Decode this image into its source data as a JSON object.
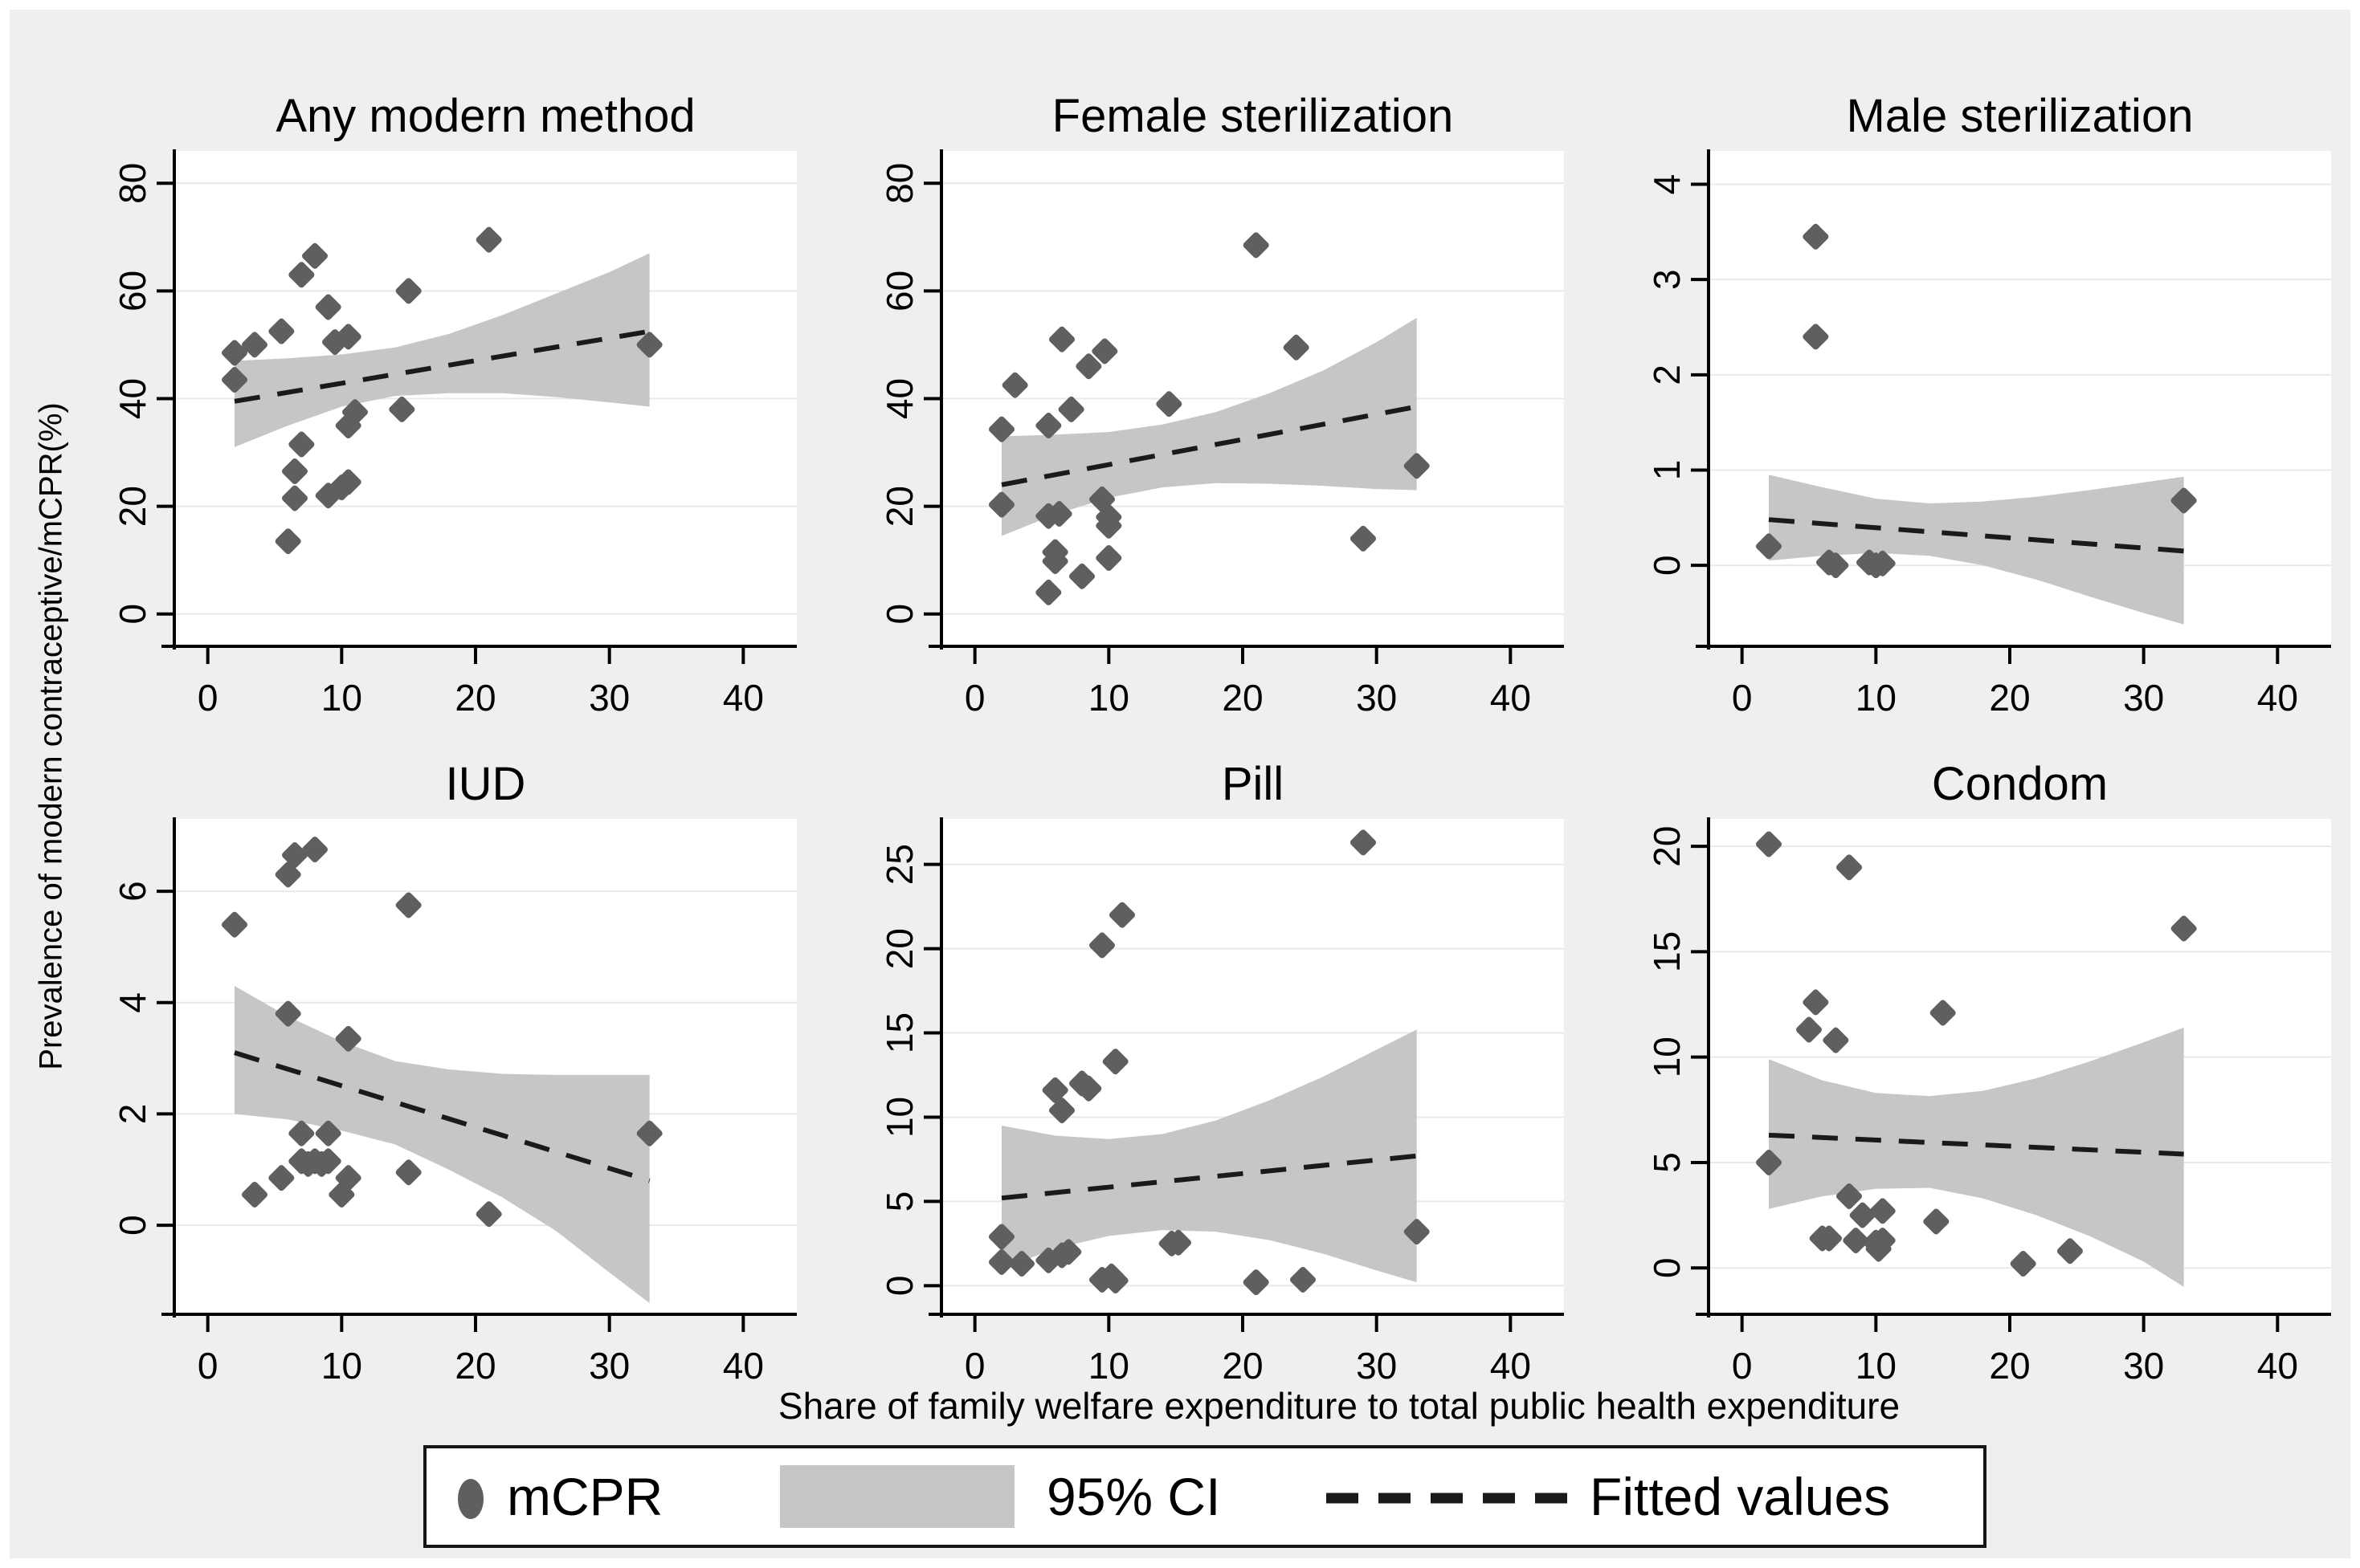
{
  "figure": {
    "ylabel": "Prevalence of modern contraceptive/mCPR(%)",
    "xlabel": "Share of family welfare expenditure to total public health expenditure",
    "colors": {
      "marker": "#5f5f5f",
      "ci": "#c6c6c6",
      "fit": "#1a1a1a",
      "background": "#efefef",
      "plot_bg": "#ffffff",
      "grid": "#e9e9e9",
      "axis": "#000000"
    }
  },
  "legend": {
    "items": [
      {
        "label": "mCPR",
        "type": "marker"
      },
      {
        "label": "95% CI",
        "type": "area"
      },
      {
        "label": "Fitted values",
        "type": "line"
      }
    ]
  },
  "chart_data": [
    {
      "type": "scatter",
      "title": "Any modern method",
      "xlim": [
        -2.5,
        44
      ],
      "xticks": [
        0,
        10,
        20,
        30,
        40
      ],
      "ylim": [
        -6,
        86
      ],
      "yticks": [
        0,
        20,
        40,
        60,
        80
      ],
      "points": [
        [
          2,
          48.5
        ],
        [
          2,
          43.5
        ],
        [
          3.5,
          50
        ],
        [
          5.5,
          52.5
        ],
        [
          6,
          13.5
        ],
        [
          6.5,
          21.5
        ],
        [
          6.5,
          26.5
        ],
        [
          7,
          31.5
        ],
        [
          7,
          63
        ],
        [
          8,
          66.5
        ],
        [
          9,
          57
        ],
        [
          9,
          22
        ],
        [
          9.5,
          50.5
        ],
        [
          10,
          23.5
        ],
        [
          10.5,
          24.5
        ],
        [
          10.5,
          35
        ],
        [
          10.5,
          51.5
        ],
        [
          11,
          37.5
        ],
        [
          14.5,
          38
        ],
        [
          15,
          60
        ],
        [
          21,
          69.5
        ],
        [
          33,
          50
        ]
      ],
      "fit_line": {
        "x0": 2,
        "y0": 39.5,
        "x1": 33,
        "y1": 52.5
      },
      "ci_band": {
        "x": [
          2,
          6,
          10,
          14,
          18,
          22,
          26,
          30,
          33
        ],
        "upper": [
          47,
          47.5,
          48.2,
          49.5,
          52,
          55.5,
          59.5,
          63.5,
          67
        ],
        "lower": [
          31,
          35,
          38.5,
          40.5,
          41,
          41,
          40.3,
          39.3,
          38.5
        ]
      }
    },
    {
      "type": "scatter",
      "title": "Female sterilization",
      "xlim": [
        -2.5,
        44
      ],
      "xticks": [
        0,
        10,
        20,
        30,
        40
      ],
      "ylim": [
        -6,
        86
      ],
      "yticks": [
        0,
        20,
        40,
        60,
        80
      ],
      "points": [
        [
          2,
          20.3
        ],
        [
          2,
          34.3
        ],
        [
          3,
          42.5
        ],
        [
          5.5,
          4
        ],
        [
          5.5,
          18.2
        ],
        [
          5.5,
          35
        ],
        [
          6,
          9.8
        ],
        [
          6,
          11.5
        ],
        [
          6.3,
          18.6
        ],
        [
          6.5,
          51
        ],
        [
          7.2,
          38
        ],
        [
          8,
          7
        ],
        [
          8.5,
          46
        ],
        [
          9.5,
          21.3
        ],
        [
          9.7,
          48.8
        ],
        [
          10,
          18
        ],
        [
          10,
          16.4
        ],
        [
          10,
          10.4
        ],
        [
          14.5,
          39
        ],
        [
          21,
          68.5
        ],
        [
          24,
          49.5
        ],
        [
          29,
          14
        ],
        [
          33,
          27.5
        ]
      ],
      "fit_line": {
        "x0": 2,
        "y0": 24,
        "x1": 33,
        "y1": 38.5
      },
      "ci_band": {
        "x": [
          2,
          6,
          10,
          14,
          18,
          22,
          26,
          30,
          33
        ],
        "upper": [
          33,
          33.3,
          33.8,
          35.2,
          37.5,
          41,
          45.2,
          50.5,
          55
        ],
        "lower": [
          14.5,
          18.5,
          21.6,
          23.5,
          24.3,
          24.2,
          23.8,
          23.2,
          23
        ]
      }
    },
    {
      "type": "scatter",
      "title": "Male sterilization",
      "xlim": [
        -2.5,
        44
      ],
      "xticks": [
        0,
        10,
        20,
        30,
        40
      ],
      "ylim": [
        -0.85,
        4.35
      ],
      "yticks": [
        0,
        1,
        2,
        3,
        4
      ],
      "points": [
        [
          2,
          0.2
        ],
        [
          5.5,
          3.45
        ],
        [
          5.5,
          2.4
        ],
        [
          6.5,
          0.03
        ],
        [
          7,
          0
        ],
        [
          9.5,
          0.03
        ],
        [
          10,
          0
        ],
        [
          10.5,
          0.02
        ],
        [
          33,
          0.68
        ]
      ],
      "fit_line": {
        "x0": 2,
        "y0": 0.48,
        "x1": 33,
        "y1": 0.15
      },
      "ci_band": {
        "x": [
          2,
          6,
          10,
          14,
          18,
          22,
          26,
          30,
          33
        ],
        "upper": [
          0.95,
          0.82,
          0.7,
          0.65,
          0.67,
          0.72,
          0.79,
          0.87,
          0.93
        ],
        "lower": [
          0.05,
          0.1,
          0.13,
          0.1,
          0,
          -0.15,
          -0.33,
          -0.5,
          -0.62
        ]
      }
    },
    {
      "type": "scatter",
      "title": "IUD",
      "xlim": [
        -2.5,
        44
      ],
      "xticks": [
        0,
        10,
        20,
        30,
        40
      ],
      "ylim": [
        -1.6,
        7.3
      ],
      "yticks": [
        0,
        2,
        4,
        6
      ],
      "points": [
        [
          2,
          5.4
        ],
        [
          3.5,
          0.55
        ],
        [
          5.5,
          0.85
        ],
        [
          6,
          3.8
        ],
        [
          6,
          6.3
        ],
        [
          6.5,
          6.65
        ],
        [
          7,
          1.65
        ],
        [
          7,
          1.15
        ],
        [
          7.5,
          1.1
        ],
        [
          8,
          6.75
        ],
        [
          8,
          1.15
        ],
        [
          8.5,
          1.1
        ],
        [
          9,
          1.65
        ],
        [
          9,
          1.15
        ],
        [
          10,
          0.55
        ],
        [
          10.5,
          3.35
        ],
        [
          10.5,
          0.85
        ],
        [
          15,
          5.75
        ],
        [
          15,
          0.95
        ],
        [
          21,
          0.2
        ],
        [
          33,
          1.65
        ]
      ],
      "fit_line": {
        "x0": 2,
        "y0": 3.1,
        "x1": 33,
        "y1": 0.8
      },
      "ci_band": {
        "x": [
          2,
          6,
          10,
          14,
          18,
          22,
          26,
          30,
          33
        ],
        "upper": [
          4.3,
          3.75,
          3.3,
          2.95,
          2.8,
          2.72,
          2.7,
          2.7,
          2.7
        ],
        "lower": [
          2,
          1.9,
          1.7,
          1.45,
          1,
          0.5,
          -0.1,
          -0.85,
          -1.4
        ]
      }
    },
    {
      "type": "scatter",
      "title": "Pill",
      "xlim": [
        -2.5,
        44
      ],
      "xticks": [
        0,
        10,
        20,
        30,
        40
      ],
      "ylim": [
        -1.7,
        27.7
      ],
      "yticks": [
        0,
        5,
        10,
        15,
        20,
        25
      ],
      "points": [
        [
          2,
          2.9
        ],
        [
          2,
          1.4
        ],
        [
          3.5,
          1.3
        ],
        [
          5.5,
          1.5
        ],
        [
          6,
          11.6
        ],
        [
          6.5,
          10.4
        ],
        [
          6.5,
          1.8
        ],
        [
          7,
          2
        ],
        [
          8,
          12
        ],
        [
          8.5,
          11.7
        ],
        [
          9.5,
          20.2
        ],
        [
          9.5,
          0.35
        ],
        [
          10.2,
          0.55
        ],
        [
          10.5,
          13.3
        ],
        [
          10.5,
          0.3
        ],
        [
          11,
          22
        ],
        [
          14.7,
          2.5
        ],
        [
          15.2,
          2.55
        ],
        [
          21,
          0.2
        ],
        [
          24.5,
          0.35
        ],
        [
          29,
          26.3
        ],
        [
          33,
          3.2
        ]
      ],
      "fit_line": {
        "x0": 2,
        "y0": 5.2,
        "x1": 33,
        "y1": 7.7
      },
      "ci_band": {
        "x": [
          2,
          6,
          10,
          14,
          18,
          22,
          26,
          30,
          33
        ],
        "upper": [
          9.5,
          8.9,
          8.7,
          9,
          9.8,
          11,
          12.4,
          14,
          15.2
        ],
        "lower": [
          1,
          2.2,
          2.95,
          3.3,
          3.2,
          2.7,
          1.9,
          0.9,
          0.2
        ]
      }
    },
    {
      "type": "scatter",
      "title": "Condom",
      "xlim": [
        -2.5,
        44
      ],
      "xticks": [
        0,
        10,
        20,
        30,
        40
      ],
      "ylim": [
        -2.2,
        21.3
      ],
      "yticks": [
        0,
        5,
        10,
        15,
        20
      ],
      "points": [
        [
          2,
          20.1
        ],
        [
          2,
          5
        ],
        [
          5,
          11.3
        ],
        [
          5.5,
          12.6
        ],
        [
          6,
          1.4
        ],
        [
          6.5,
          1.4
        ],
        [
          7,
          10.8
        ],
        [
          8,
          19
        ],
        [
          8,
          3.4
        ],
        [
          8.5,
          1.3
        ],
        [
          9,
          2.5
        ],
        [
          10,
          1.2
        ],
        [
          10.2,
          0.9
        ],
        [
          10.5,
          2.7
        ],
        [
          10.5,
          1.3
        ],
        [
          14.5,
          2.2
        ],
        [
          15,
          12.1
        ],
        [
          21,
          0.2
        ],
        [
          24.5,
          0.8
        ],
        [
          33,
          16.1
        ]
      ],
      "fit_line": {
        "x0": 2,
        "y0": 6.3,
        "x1": 33,
        "y1": 5.4
      },
      "ci_band": {
        "x": [
          2,
          6,
          10,
          14,
          18,
          22,
          26,
          30,
          33
        ],
        "upper": [
          9.9,
          8.9,
          8.3,
          8.15,
          8.4,
          9,
          9.8,
          10.7,
          11.4
        ],
        "lower": [
          2.8,
          3.4,
          3.75,
          3.8,
          3.3,
          2.5,
          1.5,
          0.3,
          -0.9
        ]
      }
    }
  ]
}
